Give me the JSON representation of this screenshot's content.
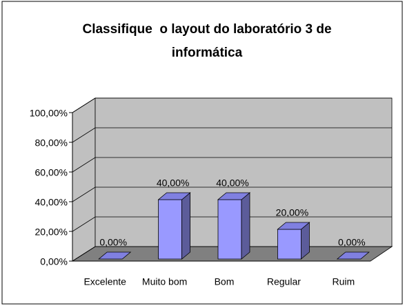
{
  "chart_data": {
    "type": "bar3d",
    "title": "Classifique  o layout do laboratório 3 de informática",
    "categories": [
      "Excelente",
      "Muito bom",
      "Bom",
      "Regular",
      "Ruim"
    ],
    "values": [
      0,
      40,
      40,
      20,
      0
    ],
    "value_labels": [
      "0,00%",
      "40,00%",
      "40,00%",
      "20,00%",
      "0,00%"
    ],
    "color": "#9999ff",
    "ylim": [
      0,
      100
    ],
    "yticks": [
      {
        "value": 0,
        "label": "0,00%"
      },
      {
        "value": 20,
        "label": "20,00%"
      },
      {
        "value": 40,
        "label": "40,00%"
      },
      {
        "value": 60,
        "label": "60,00%"
      },
      {
        "value": 80,
        "label": "80,00%"
      },
      {
        "value": 100,
        "label": "100,00%"
      }
    ],
    "grid": true
  }
}
